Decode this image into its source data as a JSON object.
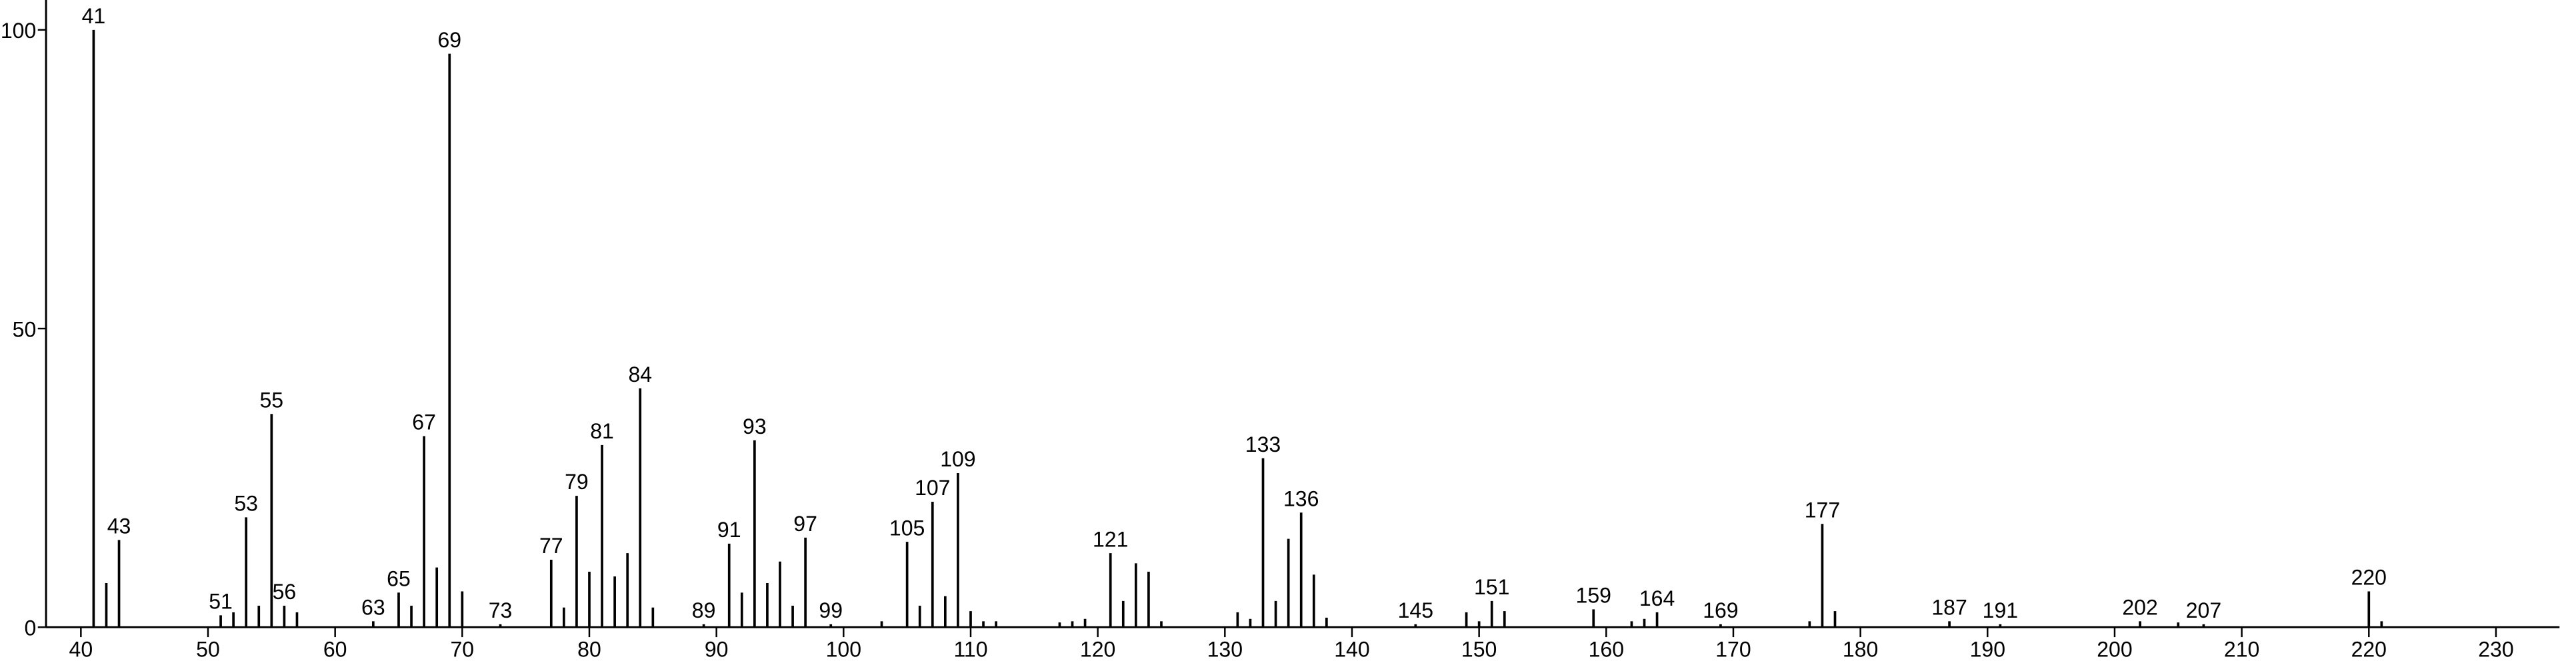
{
  "chart_data": {
    "type": "bar",
    "x": [
      41,
      42,
      43,
      51,
      52,
      53,
      54,
      55,
      56,
      57,
      63,
      65,
      66,
      67,
      68,
      69,
      70,
      73,
      77,
      78,
      79,
      80,
      81,
      82,
      83,
      84,
      85,
      89,
      91,
      92,
      93,
      94,
      95,
      96,
      97,
      99,
      103,
      105,
      106,
      107,
      108,
      109,
      110,
      111,
      112,
      117,
      118,
      119,
      121,
      122,
      123,
      124,
      125,
      131,
      132,
      133,
      134,
      135,
      136,
      137,
      138,
      145,
      149,
      150,
      151,
      152,
      159,
      162,
      163,
      164,
      169,
      176,
      177,
      178,
      187,
      191,
      202,
      205,
      207,
      220,
      221
    ],
    "values": [
      100,
      7.4,
      14.6,
      2,
      2.5,
      18.4,
      3.6,
      35.7,
      3.6,
      2.5,
      1,
      5.8,
      3.6,
      32,
      10,
      96,
      6,
      0.5,
      11.3,
      3.3,
      22,
      9.3,
      30.5,
      8.5,
      12.4,
      40,
      3.3,
      0.5,
      14,
      5.8,
      31.3,
      7.4,
      11,
      3.6,
      15,
      0.5,
      1,
      14.3,
      3.6,
      21,
      5.2,
      25.8,
      2.7,
      1,
      1,
      0.8,
      1,
      1.4,
      12.4,
      4.4,
      10.7,
      9.3,
      1,
      2.5,
      1.4,
      28.3,
      4.4,
      14.8,
      19.2,
      8.8,
      1.6,
      0.5,
      2.5,
      1,
      4.4,
      2.7,
      3,
      1,
      1.4,
      2.5,
      0.5,
      1,
      17.3,
      2.7,
      1,
      0.5,
      1,
      0.8,
      0.5,
      6,
      1
    ],
    "label_peaks": [
      true,
      false,
      true,
      true,
      false,
      true,
      false,
      true,
      true,
      false,
      true,
      true,
      false,
      true,
      false,
      true,
      false,
      true,
      true,
      false,
      true,
      false,
      true,
      false,
      false,
      true,
      false,
      true,
      true,
      false,
      true,
      false,
      false,
      false,
      true,
      true,
      false,
      true,
      false,
      true,
      false,
      true,
      false,
      false,
      false,
      false,
      false,
      false,
      true,
      false,
      false,
      false,
      false,
      false,
      false,
      true,
      false,
      false,
      true,
      false,
      false,
      true,
      false,
      false,
      true,
      false,
      true,
      false,
      false,
      true,
      true,
      false,
      true,
      false,
      true,
      true,
      true,
      false,
      true,
      true,
      false
    ],
    "color": "#000000",
    "xlim": [
      37,
      235
    ],
    "ylim": [
      0,
      105
    ],
    "xticks": [
      40,
      50,
      60,
      70,
      80,
      90,
      100,
      110,
      120,
      130,
      140,
      150,
      160,
      170,
      180,
      190,
      200,
      210,
      220,
      230
    ],
    "yticks": [
      0,
      50,
      100
    ]
  }
}
